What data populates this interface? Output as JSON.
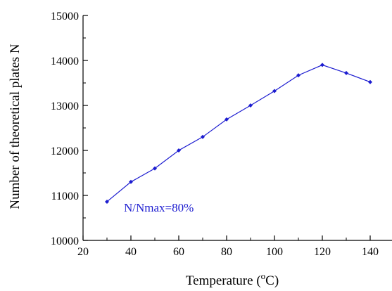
{
  "chart_data": {
    "type": "line",
    "title": "",
    "xlabel": "Temperature (",
    "xlabel_sup": "o",
    "xlabel_tail": "C)",
    "ylabel": "Number of theoretical plates N",
    "xlim": [
      20,
      150
    ],
    "ylim": [
      10000,
      15000
    ],
    "x_ticks": [
      20,
      40,
      60,
      80,
      100,
      120,
      140
    ],
    "y_ticks": [
      10000,
      11000,
      12000,
      13000,
      14000,
      15000
    ],
    "x_tick_labels": [
      "20",
      "40",
      "60",
      "80",
      "100",
      "120",
      "140"
    ],
    "y_tick_labels": [
      "10000",
      "11000",
      "12000",
      "13000",
      "14000",
      "15000"
    ],
    "grid": false,
    "annotation": "N/Nmax=80%",
    "series": [
      {
        "color": "#1c1cd0",
        "marker": "diamond",
        "x": [
          30,
          40,
          50,
          60,
          70,
          80,
          90,
          100,
          110,
          120,
          130,
          140
        ],
        "y": [
          10860,
          11300,
          11600,
          12000,
          12300,
          12690,
          13000,
          13320,
          13670,
          13900,
          13720,
          13520
        ]
      }
    ]
  }
}
